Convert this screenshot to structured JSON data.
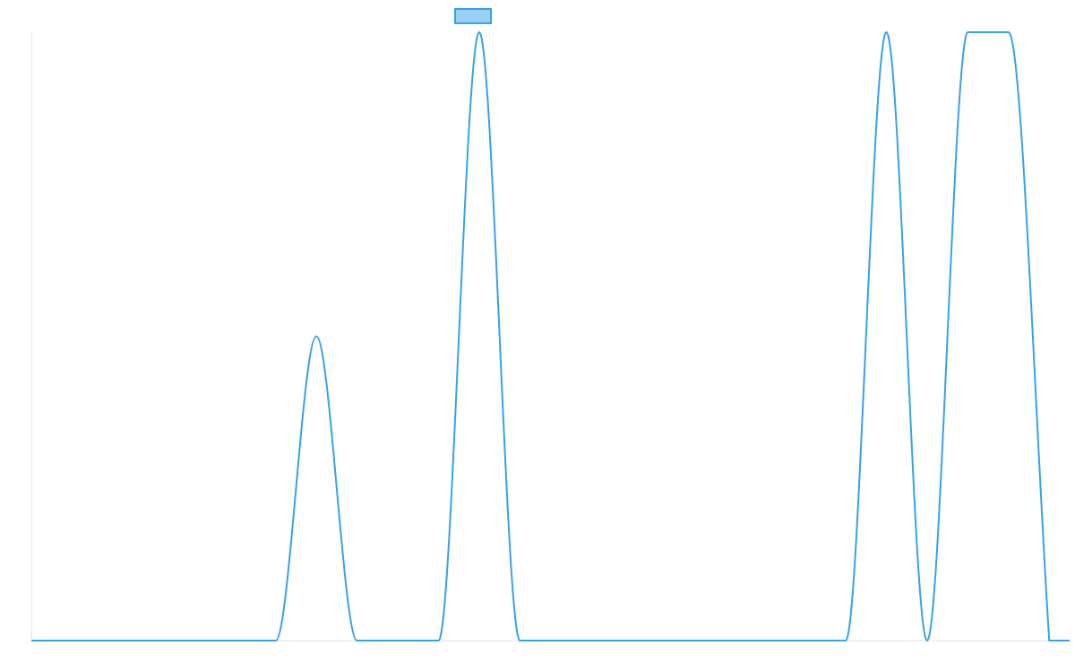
{
  "colors": {
    "series_stroke": "#36a2eb",
    "series_fill": "#9ad0f5",
    "axis": "#e6e6e6",
    "background": "#ffffff"
  },
  "chart_data": {
    "type": "line",
    "title": "",
    "xlabel": "",
    "ylabel": "",
    "x": [
      0,
      2,
      4,
      6,
      8,
      10,
      12,
      14,
      16,
      18,
      20,
      22,
      24,
      26,
      28,
      30,
      32,
      34,
      36,
      38,
      40,
      42,
      44,
      46,
      48,
      50
    ],
    "series": [
      {
        "name": "",
        "values": [
          0,
          0,
          0,
          0,
          0,
          0,
          0,
          1,
          0,
          0,
          0,
          2,
          0,
          0,
          0,
          0,
          0,
          0,
          0,
          0,
          0,
          2,
          0,
          2,
          2,
          0
        ]
      }
    ],
    "xlim": [
      0,
      51
    ],
    "ylim": [
      0,
      2
    ],
    "grid": false,
    "tick_labels_shown": false,
    "legend": {
      "placement": "top-center",
      "shows_swatch_only": true
    }
  }
}
